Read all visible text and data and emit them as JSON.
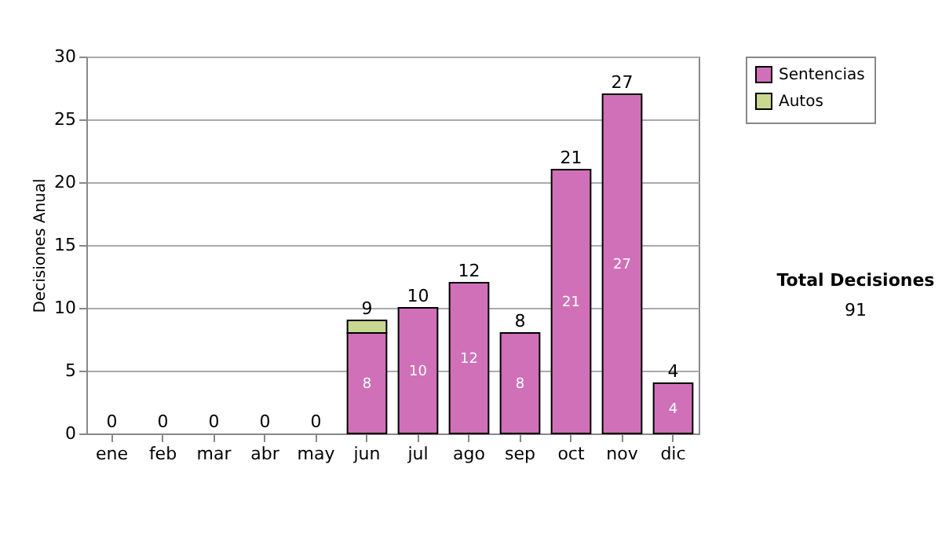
{
  "chart_data": {
    "type": "bar",
    "stacked": true,
    "ylabel": "Decisiones Anual",
    "categories": [
      "ene",
      "feb",
      "mar",
      "abr",
      "may",
      "jun",
      "jul",
      "ago",
      "sep",
      "oct",
      "nov",
      "dic"
    ],
    "series": [
      {
        "name": "Sentencias",
        "color": "#d070b8",
        "values": [
          0,
          0,
          0,
          0,
          0,
          8,
          10,
          12,
          8,
          21,
          27,
          4
        ],
        "value_labels": [
          null,
          null,
          null,
          null,
          null,
          "8",
          "10",
          "12",
          "8",
          "21",
          "27",
          "4"
        ]
      },
      {
        "name": "Autos",
        "color": "#c8d890",
        "values": [
          0,
          0,
          0,
          0,
          0,
          1,
          0,
          0,
          0,
          0,
          0,
          0
        ]
      }
    ],
    "totals": [
      "0",
      "0",
      "0",
      "0",
      "0",
      "9",
      "10",
      "12",
      "8",
      "21",
      "27",
      "4"
    ],
    "ylim": [
      0,
      30
    ],
    "yticks": [
      0,
      5,
      10,
      15,
      20,
      25,
      30
    ],
    "grid": "y",
    "legend": "right",
    "annotations": [
      "Total Decisiones",
      "91"
    ]
  }
}
